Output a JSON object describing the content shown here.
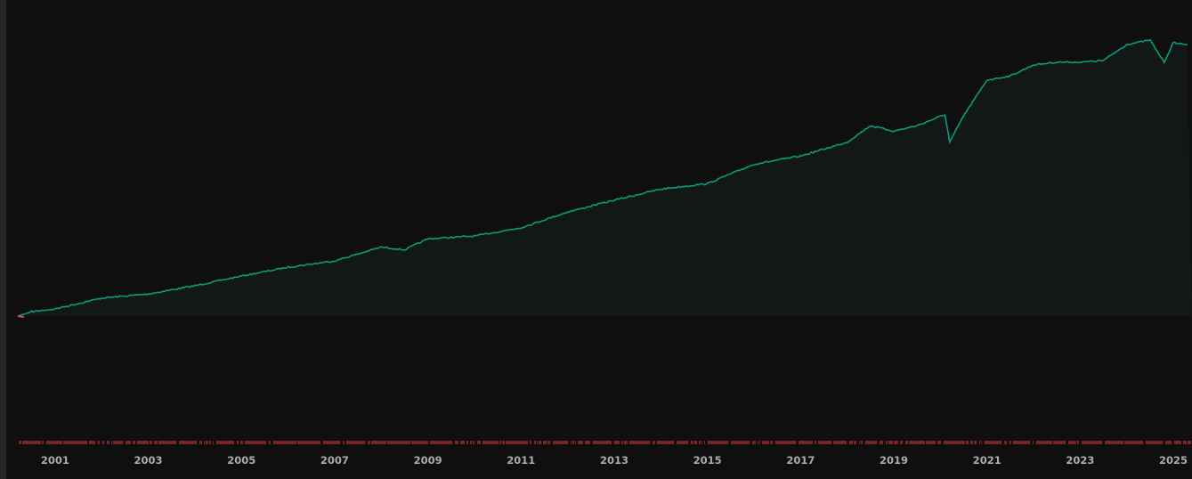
{
  "chart_data": {
    "type": "area",
    "title": "",
    "xlabel": "",
    "ylabel": "",
    "colors": {
      "line": "#0b9a80",
      "fill": "#121816",
      "initial_drawdown": "#e0434e",
      "drawdown_marks": "#7a2328",
      "background": "#0f0f0f"
    },
    "x_tick_labels": [
      "2001",
      "2003",
      "2005",
      "2007",
      "2009",
      "2011",
      "2013",
      "2015",
      "2017",
      "2019",
      "2021",
      "2023",
      "2025"
    ],
    "xlim": [
      2000.2,
      2025.4
    ],
    "ylim": [
      0,
      100
    ],
    "y_axis_labels_shown": false,
    "grid": false,
    "series": [
      {
        "x": [
          2000.2,
          2000.5,
          2001,
          2002,
          2003,
          2004,
          2005,
          2006,
          2007,
          2008,
          2008.5,
          2009,
          2010,
          2011,
          2012,
          2013,
          2014,
          2015,
          2016,
          2017,
          2018,
          2018.5,
          2019,
          2019.5,
          2020.1,
          2020.2,
          2020.5,
          2021,
          2021.5,
          2022,
          2022.5,
          2023,
          2023.5,
          2024,
          2024.5,
          2024.8,
          2025,
          2025.3
        ],
        "values": [
          0,
          1.6,
          2.6,
          6.5,
          8,
          11,
          14.5,
          17.7,
          20,
          25,
          24,
          28,
          29,
          32,
          37.7,
          42,
          46,
          48,
          55,
          58,
          63,
          69,
          67,
          69,
          73,
          63,
          72.6,
          85.5,
          87,
          91,
          92,
          92,
          92.6,
          98.4,
          100,
          92,
          99,
          98.4
        ]
      }
    ]
  }
}
